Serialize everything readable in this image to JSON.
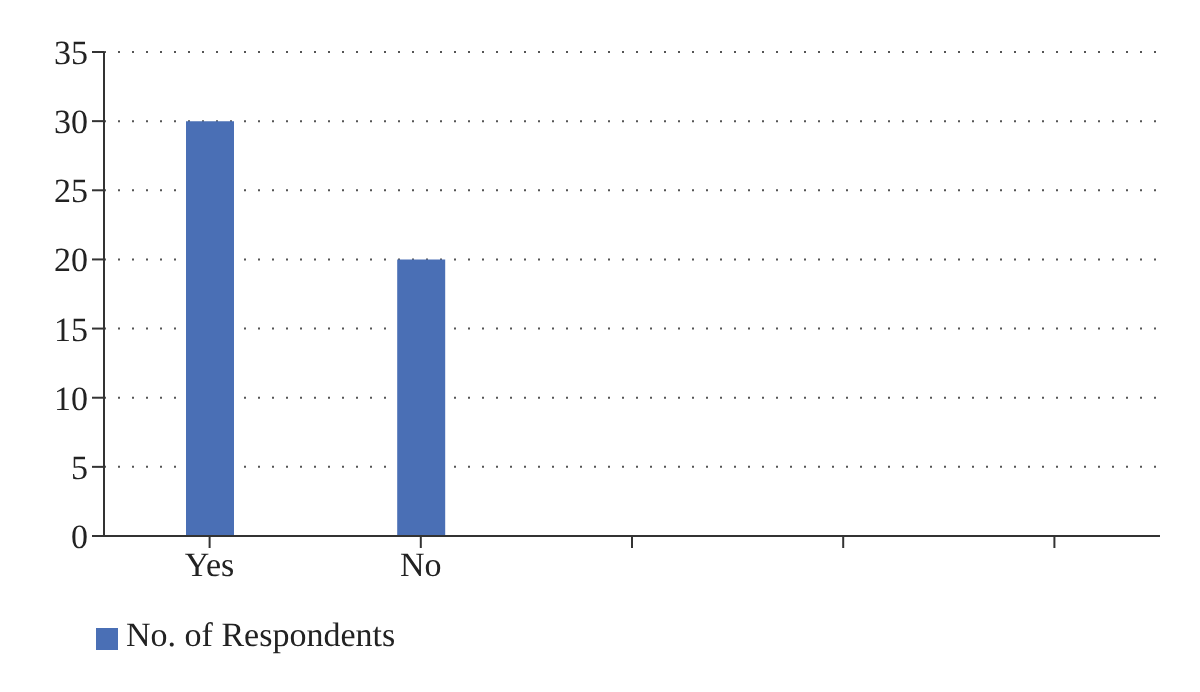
{
  "chart_data": {
    "type": "bar",
    "categories": [
      "Yes",
      "No",
      null,
      null,
      null
    ],
    "series": [
      {
        "name": "No. of Respondents",
        "color": "#4a6fb5",
        "values": [
          30,
          20,
          null,
          null,
          null
        ]
      }
    ],
    "ylim": [
      0,
      35
    ],
    "yticks": [
      0,
      5,
      10,
      15,
      20,
      25,
      30,
      35
    ],
    "grid": "y",
    "legend": "bottom left"
  }
}
